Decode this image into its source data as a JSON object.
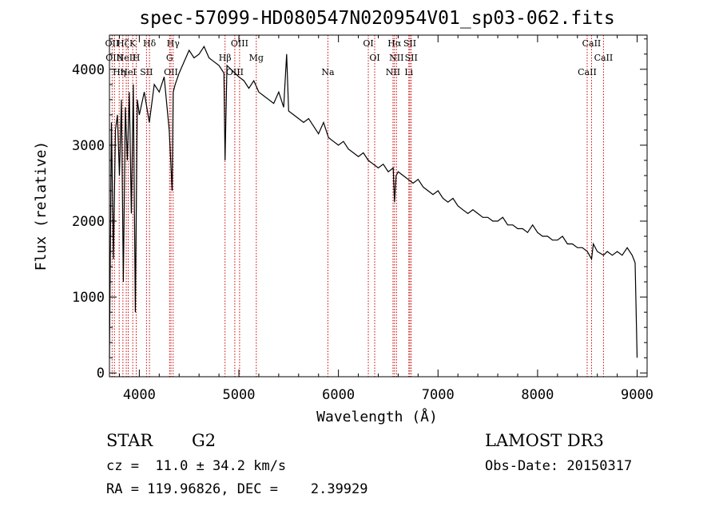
{
  "chart_data": {
    "type": "line",
    "title": "spec-57099-HD080547N020954V01_sp03-062.fits",
    "xlabel": "Wavelength (Å)",
    "ylabel": "Flux (relative)",
    "xlim": [
      3700,
      9100
    ],
    "ylim": [
      -50,
      4450
    ],
    "x_ticks": [
      4000,
      5000,
      6000,
      7000,
      8000,
      9000
    ],
    "x_tick_labels": [
      "4000",
      "5000",
      "6000",
      "7000",
      "8000",
      "9000"
    ],
    "y_ticks": [
      0,
      1000,
      2000,
      3000,
      4000
    ],
    "y_tick_labels": [
      "0",
      "1000",
      "2000",
      "3000",
      "4000"
    ],
    "series": [
      {
        "name": "flux",
        "x": [
          3700,
          3720,
          3740,
          3760,
          3780,
          3800,
          3820,
          3840,
          3860,
          3880,
          3900,
          3920,
          3940,
          3960,
          3980,
          4000,
          4050,
          4100,
          4150,
          4200,
          4250,
          4300,
          4330,
          4340,
          4360,
          4400,
          4450,
          4500,
          4550,
          4600,
          4650,
          4700,
          4750,
          4800,
          4850,
          4861,
          4880,
          4920,
          4960,
          5000,
          5050,
          5100,
          5150,
          5200,
          5250,
          5300,
          5350,
          5400,
          5450,
          5480,
          5500,
          5550,
          5600,
          5650,
          5700,
          5750,
          5800,
          5850,
          5900,
          5950,
          6000,
          6050,
          6100,
          6150,
          6200,
          6250,
          6300,
          6350,
          6400,
          6450,
          6500,
          6550,
          6563,
          6580,
          6600,
          6650,
          6700,
          6750,
          6800,
          6850,
          6900,
          6950,
          7000,
          7050,
          7100,
          7150,
          7200,
          7250,
          7300,
          7350,
          7400,
          7450,
          7500,
          7550,
          7600,
          7650,
          7700,
          7750,
          7800,
          7850,
          7900,
          7950,
          8000,
          8050,
          8100,
          8150,
          8200,
          8250,
          8300,
          8350,
          8400,
          8450,
          8500,
          8542,
          8560,
          8600,
          8662,
          8700,
          8750,
          8800,
          8850,
          8900,
          8950,
          8980,
          9000
        ],
        "y": [
          200,
          3300,
          1500,
          3200,
          3400,
          2600,
          3600,
          1200,
          3500,
          2800,
          3700,
          2100,
          3800,
          800,
          3600,
          3400,
          3700,
          3300,
          3800,
          3700,
          3900,
          3200,
          2400,
          3700,
          3800,
          3950,
          4100,
          4250,
          4150,
          4200,
          4300,
          4150,
          4100,
          4050,
          3950,
          2800,
          4050,
          4000,
          3950,
          3900,
          3850,
          3750,
          3850,
          3700,
          3650,
          3600,
          3550,
          3700,
          3500,
          4200,
          3450,
          3400,
          3350,
          3300,
          3350,
          3250,
          3150,
          3300,
          3100,
          3050,
          3000,
          3050,
          2950,
          2900,
          2850,
          2900,
          2800,
          2750,
          2700,
          2750,
          2650,
          2700,
          2250,
          2600,
          2650,
          2600,
          2550,
          2500,
          2550,
          2450,
          2400,
          2350,
          2400,
          2300,
          2250,
          2300,
          2200,
          2150,
          2100,
          2150,
          2100,
          2050,
          2050,
          2000,
          2000,
          2050,
          1950,
          1950,
          1900,
          1900,
          1850,
          1950,
          1850,
          1800,
          1800,
          1750,
          1750,
          1800,
          1700,
          1700,
          1650,
          1650,
          1600,
          1500,
          1700,
          1600,
          1550,
          1600,
          1550,
          1600,
          1550,
          1650,
          1550,
          1450,
          200
        ]
      }
    ],
    "lines": [
      {
        "wave": 3727,
        "label": "OII"
      },
      {
        "wave": 3750,
        "label": "OIII"
      },
      {
        "wave": 3798,
        "label": "Hη"
      },
      {
        "wave": 3835,
        "label": "Hζ"
      },
      {
        "wave": 3869,
        "label": "NeII"
      },
      {
        "wave": 3889,
        "label": "HeI"
      },
      {
        "wave": 3934,
        "label": "K"
      },
      {
        "wave": 3969,
        "label": "H"
      },
      {
        "wave": 4072,
        "label": "SII"
      },
      {
        "wave": 4102,
        "label": "Hδ"
      },
      {
        "wave": 4304,
        "label": "G"
      },
      {
        "wave": 4318,
        "label": "OII"
      },
      {
        "wave": 4340,
        "label": "Hγ"
      },
      {
        "wave": 4861,
        "label": "Hβ"
      },
      {
        "wave": 4959,
        "label": "OIII"
      },
      {
        "wave": 5007,
        "label": "OIII"
      },
      {
        "wave": 5175,
        "label": "Mg"
      },
      {
        "wave": 5894,
        "label": "Na"
      },
      {
        "wave": 6300,
        "label": "OI"
      },
      {
        "wave": 6364,
        "label": "OI"
      },
      {
        "wave": 6548,
        "label": "NII"
      },
      {
        "wave": 6563,
        "label": "Hα"
      },
      {
        "wave": 6583,
        "label": "NII"
      },
      {
        "wave": 6707,
        "label": "Li"
      },
      {
        "wave": 6717,
        "label": "SII"
      },
      {
        "wave": 6731,
        "label": "SII"
      },
      {
        "wave": 8498,
        "label": "CaII"
      },
      {
        "wave": 8542,
        "label": "CaII"
      },
      {
        "wave": 8662,
        "label": "CaII"
      }
    ]
  },
  "info": {
    "class_label": "STAR",
    "subclass": "G2",
    "survey": "LAMOST DR3",
    "redshift": "cz =  11.0 ± 34.2 km/s",
    "obs_date": "Obs-Date: 20150317",
    "coords": "RA = 119.96826, DEC =    2.39929"
  },
  "colors": {
    "line": "#000000",
    "marker_line": "#cc0000",
    "axis": "#000000",
    "background": "#ffffff"
  }
}
